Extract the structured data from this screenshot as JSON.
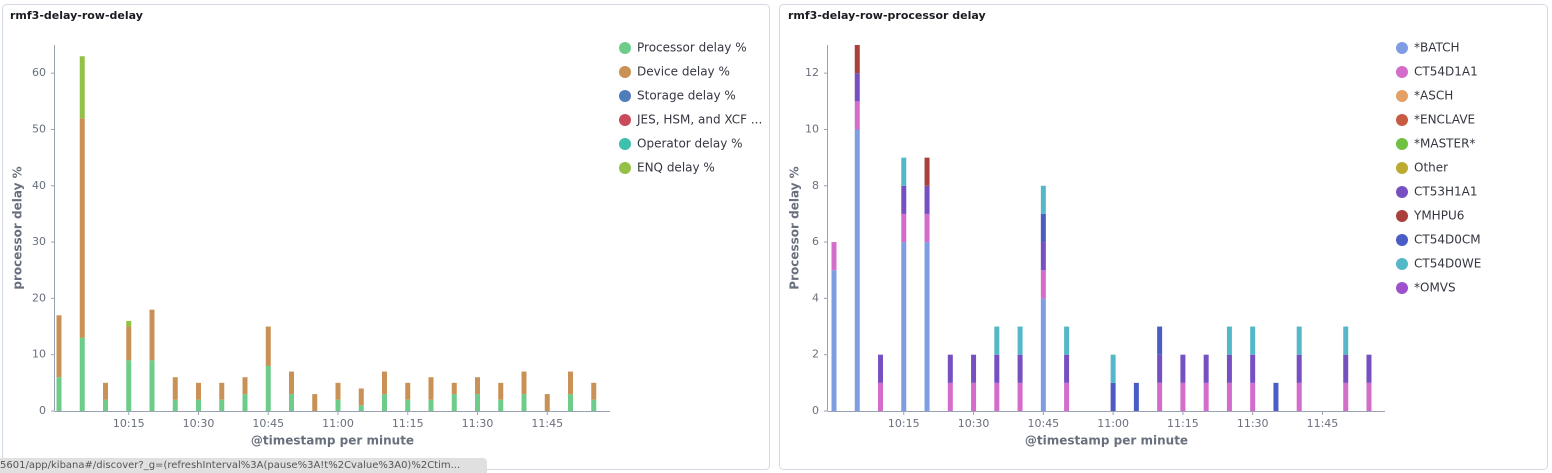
{
  "chart_data": [
    {
      "type": "bar",
      "stacked": true,
      "title": "rmf3-delay-row-delay",
      "x_label": "@timestamp per minute",
      "y_label": "processor delay %",
      "legend": "right",
      "categories": [
        null,
        null,
        null,
        "10:15",
        null,
        null,
        "10:30",
        null,
        null,
        "10:45",
        null,
        null,
        "11:00",
        null,
        null,
        "11:15",
        null,
        null,
        "11:30",
        null,
        null,
        "11:45",
        null,
        null
      ],
      "ylim": [
        0,
        65
      ],
      "yticks": [
        0,
        10,
        20,
        30,
        40,
        50,
        60
      ],
      "series": [
        {
          "name": "Processor delay %",
          "color": "#6dcc8a",
          "values": [
            6,
            13,
            2,
            9,
            9,
            2,
            2,
            2,
            3,
            8,
            3,
            0,
            2,
            1,
            3,
            2,
            2,
            3,
            3,
            2,
            3,
            0,
            3,
            2
          ]
        },
        {
          "name": "Device delay %",
          "color": "#c99155",
          "values": [
            11,
            39,
            3,
            6,
            9,
            4,
            3,
            3,
            3,
            7,
            4,
            3,
            3,
            3,
            4,
            3,
            4,
            2,
            3,
            3,
            4,
            3,
            4,
            3
          ]
        },
        {
          "name": "Storage delay %",
          "color": "#4f7cba",
          "values": [
            0,
            0,
            0,
            0,
            0,
            0,
            0,
            0,
            0,
            0,
            0,
            0,
            0,
            0,
            0,
            0,
            0,
            0,
            0,
            0,
            0,
            0,
            0,
            0
          ]
        },
        {
          "name": "JES, HSM, and XCF ...",
          "color": "#ca4b5c",
          "values": [
            0,
            0,
            0,
            0,
            0,
            0,
            0,
            0,
            0,
            0,
            0,
            0,
            0,
            0,
            0,
            0,
            0,
            0,
            0,
            0,
            0,
            0,
            0,
            0
          ]
        },
        {
          "name": "Operator delay %",
          "color": "#3fbfad",
          "values": [
            0,
            0,
            0,
            0,
            0,
            0,
            0,
            0,
            0,
            0,
            0,
            0,
            0,
            0,
            0,
            0,
            0,
            0,
            0,
            0,
            0,
            0,
            0,
            0
          ]
        },
        {
          "name": "ENQ delay %",
          "color": "#93c047",
          "values": [
            0,
            11,
            0,
            1,
            0,
            0,
            0,
            0,
            0,
            0,
            0,
            0,
            0,
            0,
            0,
            0,
            0,
            0,
            0,
            0,
            0,
            0,
            0,
            0
          ]
        }
      ]
    },
    {
      "type": "bar",
      "stacked": true,
      "title": "rmf3-delay-row-processor delay",
      "x_label": "@timestamp per minute",
      "y_label": "Processor delay %",
      "legend": "right",
      "categories": [
        null,
        null,
        null,
        "10:15",
        null,
        null,
        "10:30",
        null,
        null,
        "10:45",
        null,
        null,
        "11:00",
        null,
        null,
        "11:15",
        null,
        null,
        "11:30",
        null,
        null,
        "11:45",
        null,
        null
      ],
      "ylim": [
        0,
        13
      ],
      "yticks": [
        0,
        2,
        4,
        6,
        8,
        10,
        12
      ],
      "series": [
        {
          "name": "*BATCH",
          "color": "#7f9de3",
          "values": [
            5,
            10,
            0,
            6,
            6,
            0,
            0,
            0,
            0,
            4,
            0,
            0,
            0,
            0,
            0,
            0,
            0,
            0,
            0,
            0,
            0,
            0,
            0,
            0
          ]
        },
        {
          "name": "CT54D1A1",
          "color": "#d36ccb",
          "values": [
            1,
            1,
            1,
            1,
            1,
            1,
            1,
            1,
            1,
            1,
            1,
            0,
            0,
            0,
            1,
            1,
            1,
            1,
            1,
            0,
            1,
            0,
            1,
            1
          ]
        },
        {
          "name": "*ASCH",
          "color": "#e3a067",
          "values": [
            0,
            0,
            0,
            0,
            0,
            0,
            0,
            0,
            0,
            0,
            0,
            0,
            0,
            0,
            0,
            0,
            0,
            0,
            0,
            0,
            0,
            0,
            0,
            0
          ]
        },
        {
          "name": "*ENCLAVE",
          "color": "#c95b43",
          "values": [
            0,
            0,
            0,
            0,
            0,
            0,
            0,
            0,
            0,
            0,
            0,
            0,
            0,
            0,
            0,
            0,
            0,
            0,
            0,
            0,
            0,
            0,
            0,
            0
          ]
        },
        {
          "name": "*MASTER*",
          "color": "#6fc142",
          "values": [
            0,
            0,
            0,
            0,
            0,
            0,
            0,
            0,
            0,
            0,
            0,
            0,
            0,
            0,
            0,
            0,
            0,
            0,
            0,
            0,
            0,
            0,
            0,
            0
          ]
        },
        {
          "name": "Other",
          "color": "#bdaa30",
          "values": [
            0,
            0,
            0,
            0,
            0,
            0,
            0,
            0,
            0,
            0,
            0,
            0,
            0,
            0,
            0,
            0,
            0,
            0,
            0,
            0,
            0,
            0,
            0,
            0
          ]
        },
        {
          "name": "CT53H1A1",
          "color": "#7650c0",
          "values": [
            0,
            1,
            1,
            1,
            1,
            1,
            1,
            1,
            1,
            1,
            1,
            0,
            0,
            0,
            1,
            1,
            1,
            1,
            1,
            0,
            1,
            0,
            1,
            1
          ]
        },
        {
          "name": "YMHPU6",
          "color": "#a9403c",
          "values": [
            0,
            1,
            0,
            0,
            1,
            0,
            0,
            0,
            0,
            0,
            0,
            0,
            0,
            0,
            0,
            0,
            0,
            0,
            0,
            0,
            0,
            0,
            0,
            0
          ]
        },
        {
          "name": "CT54D0CM",
          "color": "#4b5cc4",
          "values": [
            0,
            0,
            0,
            0,
            0,
            0,
            0,
            0,
            0,
            1,
            0,
            0,
            1,
            1,
            1,
            0,
            0,
            0,
            0,
            1,
            0,
            0,
            0,
            0
          ]
        },
        {
          "name": "CT54D0WE",
          "color": "#55b8c8",
          "values": [
            0,
            0,
            0,
            1,
            0,
            0,
            0,
            1,
            1,
            1,
            1,
            0,
            1,
            0,
            0,
            0,
            0,
            1,
            1,
            0,
            1,
            0,
            1,
            0
          ]
        },
        {
          "name": "*OMVS",
          "color": "#9b52cc",
          "values": [
            0,
            0,
            0,
            0,
            0,
            0,
            0,
            0,
            0,
            0,
            0,
            0,
            0,
            0,
            0,
            0,
            0,
            0,
            0,
            0,
            0,
            0,
            0,
            0
          ]
        }
      ]
    }
  ],
  "status_url": "5601/app/kibana#/discover?_g=(refreshInterval%3A(pause%3A!t%2Cvalue%3A0)%2Ctim..."
}
